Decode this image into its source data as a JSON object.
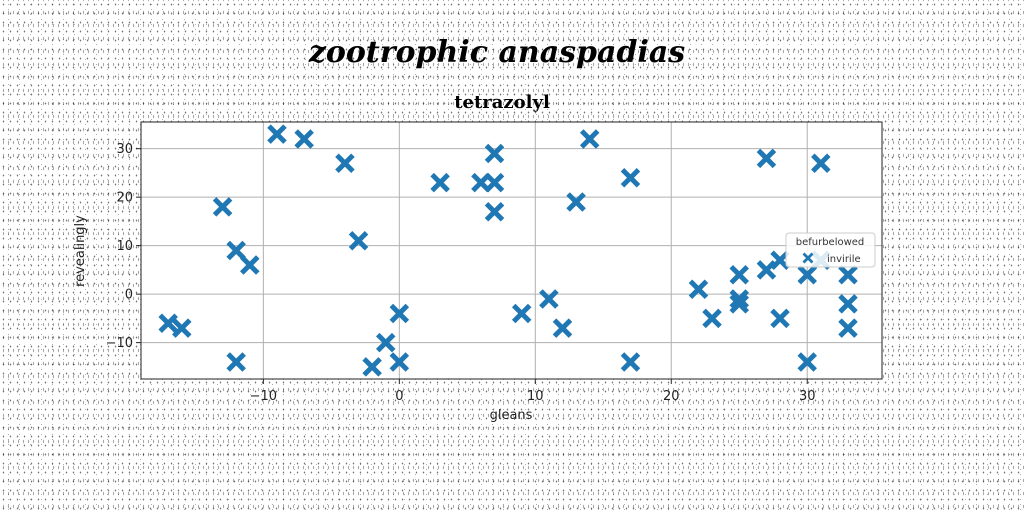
{
  "suptitle": "zootrophic anaspadias",
  "chart_data": {
    "type": "scatter",
    "title": "tetrazolyl",
    "xlabel": "gleans",
    "ylabel": "revealingly",
    "xlim": [
      -19,
      35.5
    ],
    "ylim": [
      -17.5,
      35.5
    ],
    "xticks": [
      -10,
      0,
      10,
      20,
      30
    ],
    "yticks": [
      -10,
      0,
      10,
      20,
      30
    ],
    "xtick_labels": [
      "−10",
      "0",
      "10",
      "20",
      "30"
    ],
    "ytick_labels": [
      "−10",
      "0",
      "10",
      "20",
      "30"
    ],
    "grid": true,
    "legend": {
      "title": "befurbelowed",
      "placement": "center-right"
    },
    "series": [
      {
        "name": "invirile",
        "color": "#1f77b4",
        "marker": "x-filled",
        "points": [
          [
            -17,
            -6
          ],
          [
            -16,
            -7
          ],
          [
            -13,
            18
          ],
          [
            -12,
            9
          ],
          [
            -12,
            -14
          ],
          [
            -11,
            6
          ],
          [
            -9,
            33
          ],
          [
            -7,
            32
          ],
          [
            -4,
            27
          ],
          [
            -3,
            11
          ],
          [
            -2,
            -15
          ],
          [
            -1,
            -10
          ],
          [
            0,
            -4
          ],
          [
            0,
            -14
          ],
          [
            3,
            23
          ],
          [
            6,
            23
          ],
          [
            7,
            29
          ],
          [
            7,
            23
          ],
          [
            7,
            17
          ],
          [
            9,
            -4
          ],
          [
            11,
            -1
          ],
          [
            12,
            -7
          ],
          [
            13,
            19
          ],
          [
            14,
            32
          ],
          [
            17,
            24
          ],
          [
            17,
            -14
          ],
          [
            22,
            1
          ],
          [
            23,
            -5
          ],
          [
            25,
            4
          ],
          [
            25,
            -1
          ],
          [
            25,
            -2
          ],
          [
            27,
            28
          ],
          [
            27,
            5
          ],
          [
            28,
            7
          ],
          [
            28,
            -5
          ],
          [
            30,
            4
          ],
          [
            30,
            -14
          ],
          [
            31,
            27
          ],
          [
            31,
            7
          ],
          [
            33,
            4
          ],
          [
            33,
            -2
          ],
          [
            33,
            -7
          ]
        ]
      }
    ]
  }
}
